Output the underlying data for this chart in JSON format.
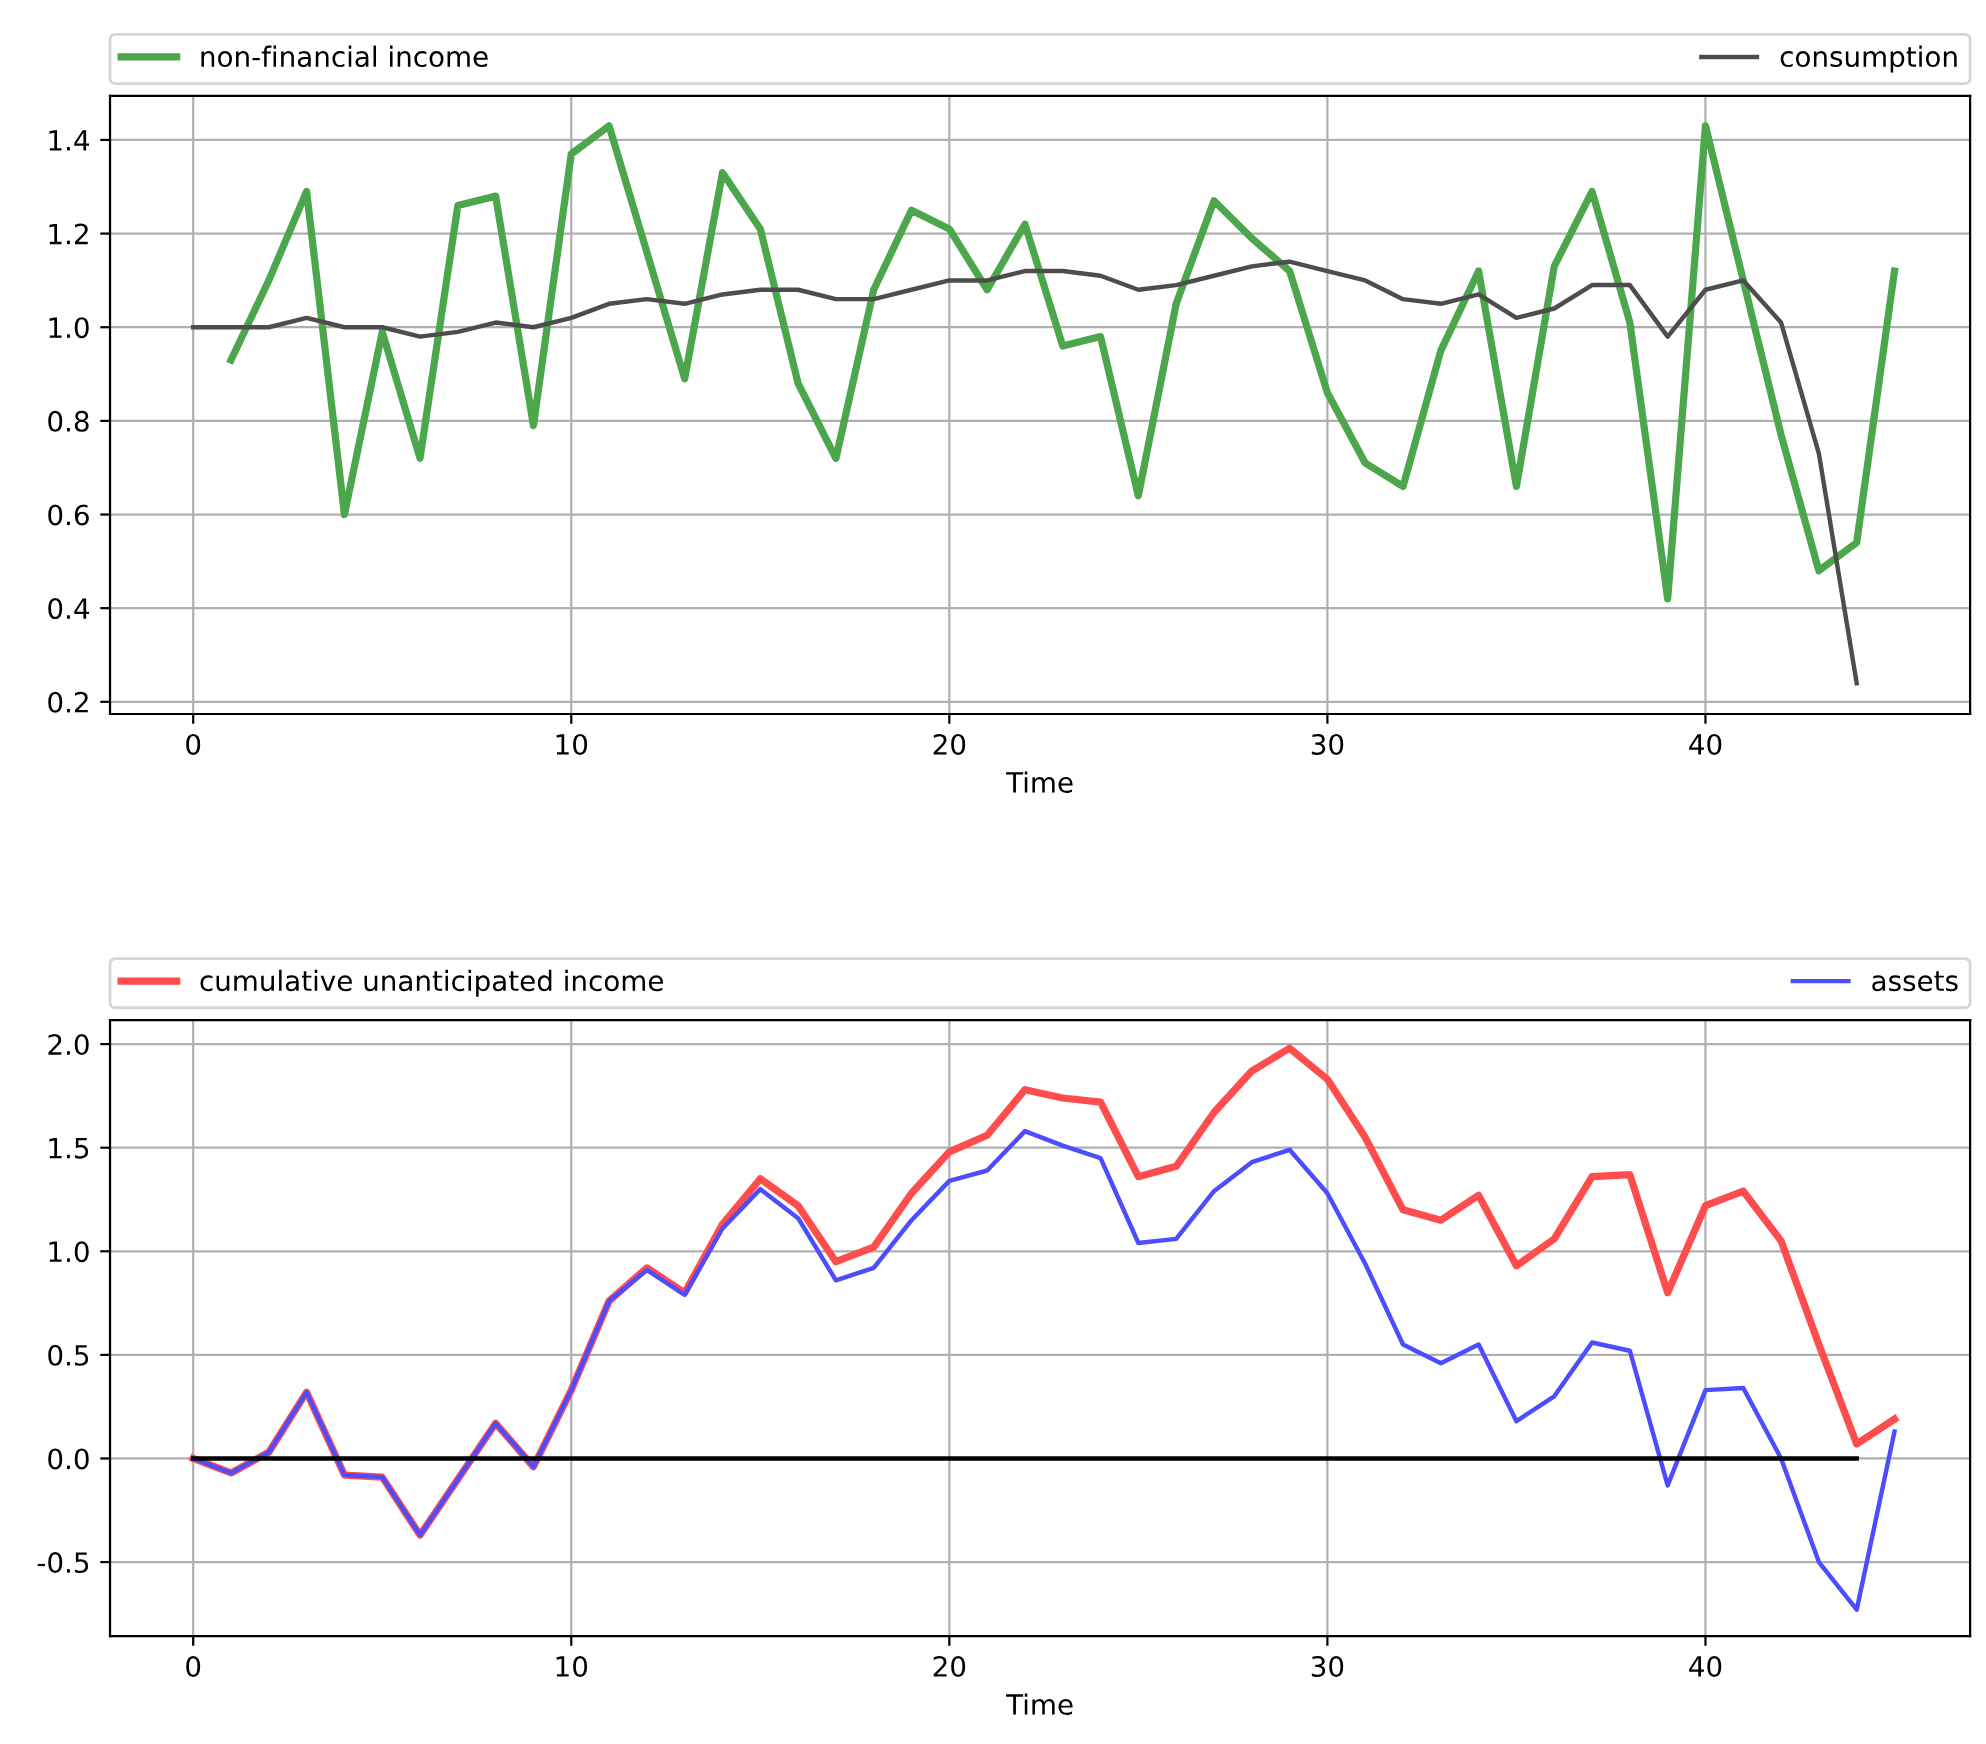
{
  "chart_data": [
    {
      "type": "line",
      "xlabel": "Time",
      "xlim": [
        -2.2,
        47.0
      ],
      "ylim": [
        0.174,
        1.494
      ],
      "xticks": [
        0,
        10,
        20,
        30,
        40
      ],
      "yticks": [
        0.2,
        0.4,
        0.6,
        0.8,
        {
          "value": 1,
          "label": "1.0"
        },
        1.2,
        1.4
      ],
      "grid": true,
      "legend": "top",
      "marker": "none",
      "line_style": "solid",
      "series": [
        {
          "name": "non-financial income",
          "color": "#4ca64c",
          "x": [
            1,
            2,
            3,
            4,
            5,
            6,
            7,
            8,
            9,
            10,
            11,
            12,
            13,
            14,
            15,
            16,
            17,
            18,
            19,
            20,
            21,
            22,
            23,
            24,
            25,
            26,
            27,
            28,
            29,
            30,
            31,
            32,
            33,
            34,
            35,
            36,
            37,
            38,
            39,
            40,
            41,
            42,
            43,
            44,
            45
          ],
          "values": [
            0.93,
            1.1,
            1.29,
            0.6,
            0.99,
            0.72,
            1.26,
            1.28,
            0.79,
            1.37,
            1.43,
            1.16,
            0.89,
            1.33,
            1.21,
            0.88,
            0.72,
            1.08,
            1.25,
            1.21,
            1.08,
            1.22,
            0.96,
            0.98,
            0.64,
            1.05,
            1.27,
            1.19,
            1.12,
            0.86,
            0.71,
            0.66,
            0.95,
            1.12,
            0.66,
            1.13,
            1.29,
            1.01,
            0.42,
            1.43,
            1.1,
            0.77,
            0.48,
            0.54,
            1.12
          ]
        },
        {
          "name": "consumption",
          "color": "#4d4d4d",
          "x": [
            0,
            1,
            2,
            3,
            4,
            5,
            6,
            7,
            8,
            9,
            10,
            11,
            12,
            13,
            14,
            15,
            16,
            17,
            18,
            19,
            20,
            21,
            22,
            23,
            24,
            25,
            26,
            27,
            28,
            29,
            30,
            31,
            32,
            33,
            34,
            35,
            36,
            37,
            38,
            39,
            40,
            41,
            42,
            43,
            44
          ],
          "values": [
            1.0,
            1.0,
            1.0,
            1.02,
            1.0,
            1.0,
            0.98,
            0.99,
            1.01,
            1.0,
            1.02,
            1.05,
            1.06,
            1.05,
            1.07,
            1.08,
            1.08,
            1.06,
            1.06,
            1.08,
            1.1,
            1.1,
            1.12,
            1.12,
            1.11,
            1.08,
            1.09,
            1.11,
            1.13,
            1.14,
            1.12,
            1.1,
            1.06,
            1.05,
            1.07,
            1.02,
            1.04,
            1.09,
            1.09,
            0.98,
            1.08,
            1.1,
            1.01,
            0.73,
            0.24
          ]
        }
      ]
    },
    {
      "type": "line",
      "xlabel": "Time",
      "xlim": [
        -2.2,
        47.0
      ],
      "ylim": [
        -0.857,
        2.116
      ],
      "xticks": [
        0,
        10,
        20,
        30,
        40
      ],
      "yticks": [
        -0.5,
        {
          "value": 0,
          "label": "0.0"
        },
        0.5,
        {
          "value": 1,
          "label": "1.0"
        },
        1.5,
        {
          "value": 2,
          "label": "2.0"
        }
      ],
      "grid": true,
      "legend": "top",
      "marker": "none",
      "line_style": "solid",
      "series": [
        {
          "name": "cumulative unanticipated income",
          "color": "#ff4d4d",
          "x": [
            0,
            1,
            2,
            3,
            4,
            5,
            6,
            7,
            8,
            9,
            10,
            11,
            12,
            13,
            14,
            15,
            16,
            17,
            18,
            19,
            20,
            21,
            22,
            23,
            24,
            25,
            26,
            27,
            28,
            29,
            30,
            31,
            32,
            33,
            34,
            35,
            36,
            37,
            38,
            39,
            40,
            41,
            42,
            43,
            44,
            45
          ],
          "values": [
            0,
            -0.07,
            0.03,
            0.32,
            -0.08,
            -0.09,
            -0.37,
            -0.1,
            0.17,
            -0.04,
            0.33,
            0.76,
            0.92,
            0.8,
            1.13,
            1.35,
            1.22,
            0.95,
            1.02,
            1.28,
            1.48,
            1.56,
            1.78,
            1.74,
            1.72,
            1.36,
            1.41,
            1.67,
            1.87,
            1.98,
            1.83,
            1.55,
            1.2,
            1.15,
            1.27,
            0.93,
            1.06,
            1.36,
            1.37,
            0.8,
            1.22,
            1.29,
            1.05,
            0.55,
            0.07,
            0.19
          ]
        },
        {
          "name": "assets",
          "color": "#4d4dff",
          "x": [
            0,
            1,
            2,
            3,
            4,
            5,
            6,
            7,
            8,
            9,
            10,
            11,
            12,
            13,
            14,
            15,
            16,
            17,
            18,
            19,
            20,
            21,
            22,
            23,
            24,
            25,
            26,
            27,
            28,
            29,
            30,
            31,
            32,
            33,
            34,
            35,
            36,
            37,
            38,
            39,
            40,
            41,
            42,
            43,
            44,
            45
          ],
          "values": [
            0,
            -0.07,
            0.03,
            0.32,
            -0.08,
            -0.09,
            -0.37,
            -0.1,
            0.17,
            -0.04,
            0.33,
            0.76,
            0.91,
            0.79,
            1.11,
            1.3,
            1.16,
            0.86,
            0.92,
            1.15,
            1.34,
            1.39,
            1.58,
            1.51,
            1.45,
            1.04,
            1.06,
            1.29,
            1.43,
            1.49,
            1.28,
            0.94,
            0.55,
            0.46,
            0.55,
            0.18,
            0.3,
            0.56,
            0.52,
            -0.13,
            0.33,
            0.34,
            0.0,
            -0.5,
            -0.73,
            0.13
          ]
        },
        {
          "color": "#000000",
          "x": [
            0,
            44
          ],
          "values": [
            0,
            0
          ]
        }
      ]
    }
  ]
}
